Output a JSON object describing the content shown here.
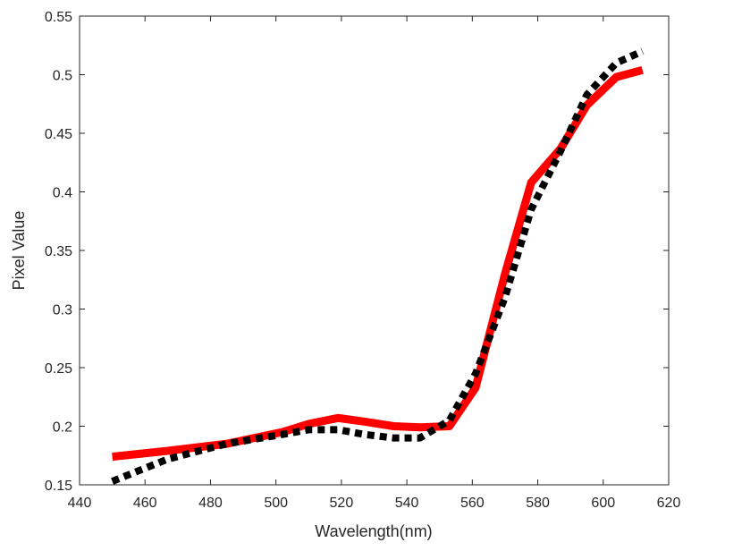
{
  "chart_data": {
    "type": "line",
    "title": "",
    "xlabel": "Wavelength(nm)",
    "ylabel": "Pixel Value",
    "xlim": [
      440,
      620
    ],
    "ylim": [
      0.15,
      0.55
    ],
    "xticks": [
      440,
      460,
      480,
      500,
      520,
      540,
      560,
      580,
      600,
      620
    ],
    "yticks": [
      0.15,
      0.2,
      0.25,
      0.3,
      0.35,
      0.4,
      0.45,
      0.5,
      0.55
    ],
    "ytick_labels": [
      "0.15",
      "0.2",
      "0.25",
      "0.3",
      "0.35",
      "0.4",
      "0.45",
      "0.5",
      "0.55"
    ],
    "grid": false,
    "legend": "none",
    "series": [
      {
        "style": "solid",
        "color": "#ff0000",
        "x": [
          450,
          467,
          485,
          502,
          510,
          519,
          527,
          536,
          544,
          553,
          561,
          570,
          578,
          587,
          595,
          604,
          612
        ],
        "y": [
          0.174,
          0.179,
          0.185,
          0.195,
          0.202,
          0.207,
          0.204,
          0.2,
          0.199,
          0.2,
          0.233,
          0.33,
          0.408,
          0.437,
          0.474,
          0.498,
          0.504
        ]
      },
      {
        "style": "dotted",
        "color": "#000000",
        "x": [
          450,
          467,
          485,
          502,
          510,
          519,
          527,
          536,
          544,
          553,
          561,
          570,
          578,
          587,
          595,
          604,
          612
        ],
        "y": [
          0.153,
          0.172,
          0.185,
          0.193,
          0.197,
          0.197,
          0.193,
          0.19,
          0.19,
          0.205,
          0.245,
          0.31,
          0.385,
          0.435,
          0.483,
          0.51,
          0.52
        ]
      }
    ]
  }
}
